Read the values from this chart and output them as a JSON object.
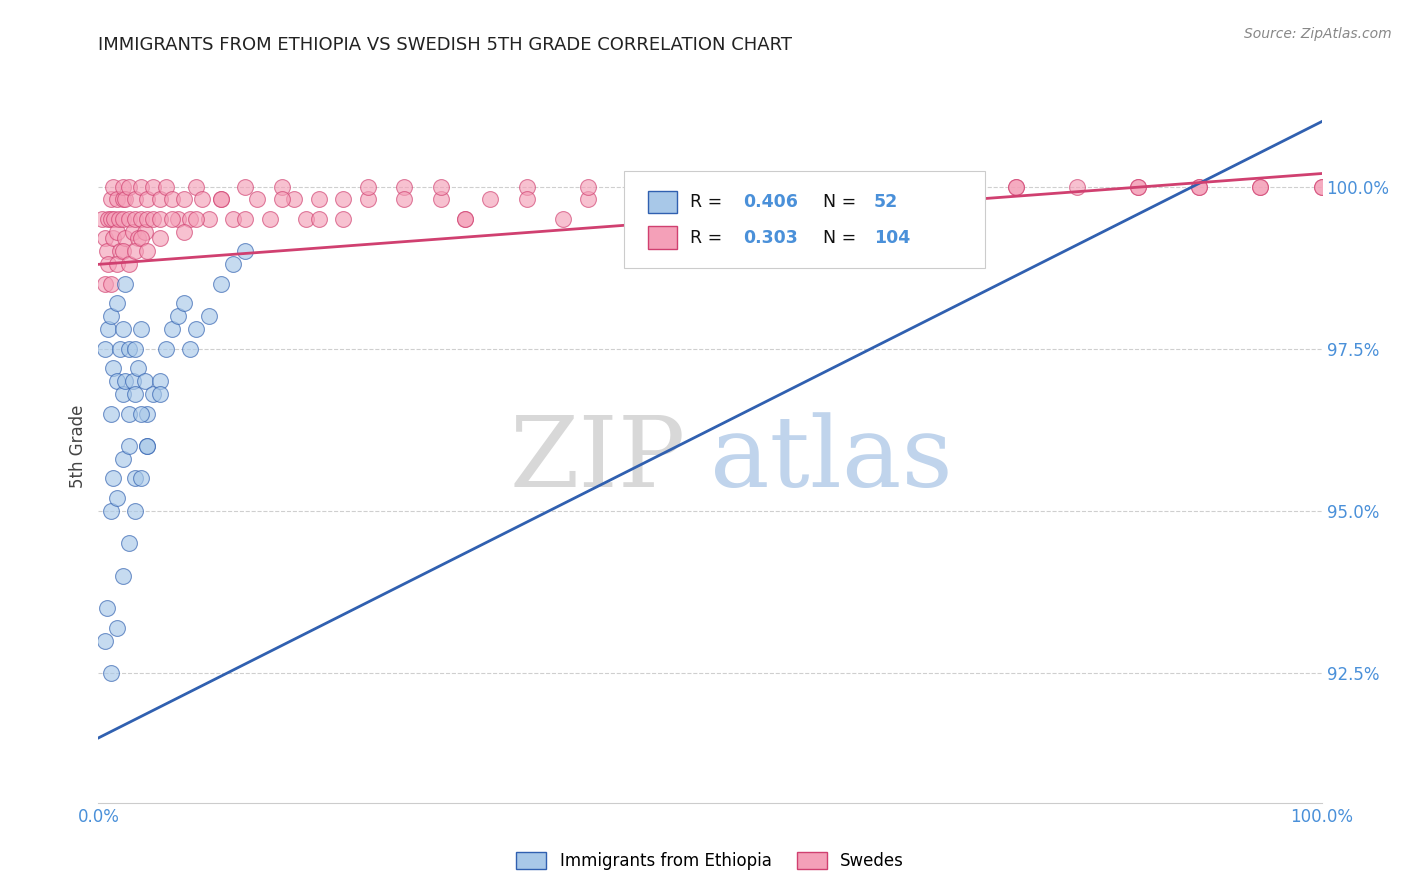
{
  "title": "IMMIGRANTS FROM ETHIOPIA VS SWEDISH 5TH GRADE CORRELATION CHART",
  "source": "Source: ZipAtlas.com",
  "ylabel": "5th Grade",
  "yticks": [
    92.5,
    95.0,
    97.5,
    100.0
  ],
  "ytick_labels": [
    "92.5%",
    "95.0%",
    "97.5%",
    "100.0%"
  ],
  "xmin": 0.0,
  "xmax": 100.0,
  "ymin": 90.5,
  "ymax": 101.5,
  "color_blue": "#a8c8e8",
  "color_pink": "#f4a0b8",
  "color_blue_line": "#3060b0",
  "color_pink_line": "#d04070",
  "legend_R1": "0.406",
  "legend_N1": "52",
  "legend_R2": "0.303",
  "legend_N2": "104",
  "blue_scatter_x": [
    0.5,
    0.8,
    1.0,
    1.0,
    1.2,
    1.5,
    1.5,
    1.8,
    2.0,
    2.0,
    2.2,
    2.2,
    2.5,
    2.5,
    2.8,
    3.0,
    3.0,
    3.2,
    3.5,
    3.8,
    4.0,
    4.5,
    5.0,
    5.5,
    6.0,
    6.5,
    7.0,
    7.5,
    8.0,
    9.0,
    10.0,
    11.0,
    12.0,
    1.0,
    1.2,
    1.5,
    2.0,
    2.5,
    3.0,
    3.5,
    4.0,
    5.0,
    0.5,
    0.7,
    1.0,
    1.5,
    2.0,
    2.5,
    3.0,
    3.5,
    4.0
  ],
  "blue_scatter_y": [
    97.5,
    97.8,
    98.0,
    96.5,
    97.2,
    97.0,
    98.2,
    97.5,
    96.8,
    97.8,
    97.0,
    98.5,
    96.5,
    97.5,
    97.0,
    96.8,
    97.5,
    97.2,
    97.8,
    97.0,
    96.5,
    96.8,
    97.0,
    97.5,
    97.8,
    98.0,
    98.2,
    97.5,
    97.8,
    98.0,
    98.5,
    98.8,
    99.0,
    95.0,
    95.5,
    95.2,
    95.8,
    96.0,
    95.5,
    96.5,
    96.0,
    96.8,
    93.0,
    93.5,
    92.5,
    93.2,
    94.0,
    94.5,
    95.0,
    95.5,
    96.0
  ],
  "pink_scatter_x": [
    0.3,
    0.5,
    0.7,
    0.8,
    1.0,
    1.0,
    1.2,
    1.2,
    1.3,
    1.5,
    1.5,
    1.7,
    1.8,
    2.0,
    2.0,
    2.0,
    2.2,
    2.2,
    2.5,
    2.5,
    2.8,
    3.0,
    3.0,
    3.2,
    3.5,
    3.5,
    3.8,
    4.0,
    4.0,
    4.5,
    4.5,
    5.0,
    5.0,
    5.5,
    6.0,
    6.5,
    7.0,
    7.5,
    8.0,
    8.5,
    9.0,
    10.0,
    11.0,
    12.0,
    13.0,
    14.0,
    15.0,
    16.0,
    17.0,
    18.0,
    20.0,
    22.0,
    25.0,
    28.0,
    30.0,
    32.0,
    35.0,
    38.0,
    40.0,
    0.5,
    0.8,
    1.0,
    1.5,
    2.0,
    2.5,
    3.0,
    3.5,
    4.0,
    5.0,
    6.0,
    7.0,
    8.0,
    10.0,
    12.0,
    15.0,
    18.0,
    20.0,
    22.0,
    25.0,
    28.0,
    45.0,
    55.0,
    60.0,
    65.0,
    70.0,
    75.0,
    80.0,
    85.0,
    90.0,
    95.0,
    100.0,
    30.0,
    35.0,
    40.0,
    50.0,
    55.0,
    65.0,
    70.0,
    75.0,
    85.0,
    90.0,
    95.0,
    100.0
  ],
  "pink_scatter_y": [
    99.5,
    99.2,
    99.0,
    99.5,
    99.8,
    99.5,
    99.2,
    100.0,
    99.5,
    99.8,
    99.3,
    99.5,
    99.0,
    99.8,
    99.5,
    100.0,
    99.2,
    99.8,
    99.5,
    100.0,
    99.3,
    99.5,
    99.8,
    99.2,
    99.5,
    100.0,
    99.3,
    99.5,
    99.8,
    99.5,
    100.0,
    99.5,
    99.8,
    100.0,
    99.8,
    99.5,
    99.8,
    99.5,
    100.0,
    99.8,
    99.5,
    99.8,
    99.5,
    100.0,
    99.8,
    99.5,
    100.0,
    99.8,
    99.5,
    99.8,
    99.5,
    99.8,
    100.0,
    99.8,
    99.5,
    99.8,
    100.0,
    99.5,
    99.8,
    98.5,
    98.8,
    98.5,
    98.8,
    99.0,
    98.8,
    99.0,
    99.2,
    99.0,
    99.2,
    99.5,
    99.3,
    99.5,
    99.8,
    99.5,
    99.8,
    99.5,
    99.8,
    100.0,
    99.8,
    100.0,
    100.0,
    100.0,
    100.0,
    100.0,
    100.0,
    100.0,
    100.0,
    100.0,
    100.0,
    100.0,
    100.0,
    99.5,
    99.8,
    100.0,
    99.8,
    100.0,
    100.0,
    100.0,
    100.0,
    100.0,
    100.0,
    100.0,
    100.0
  ],
  "blue_trendline_x": [
    0.0,
    100.0
  ],
  "blue_trendline_y": [
    91.5,
    101.0
  ],
  "pink_trendline_x": [
    0.0,
    100.0
  ],
  "pink_trendline_y": [
    98.8,
    100.2
  ]
}
